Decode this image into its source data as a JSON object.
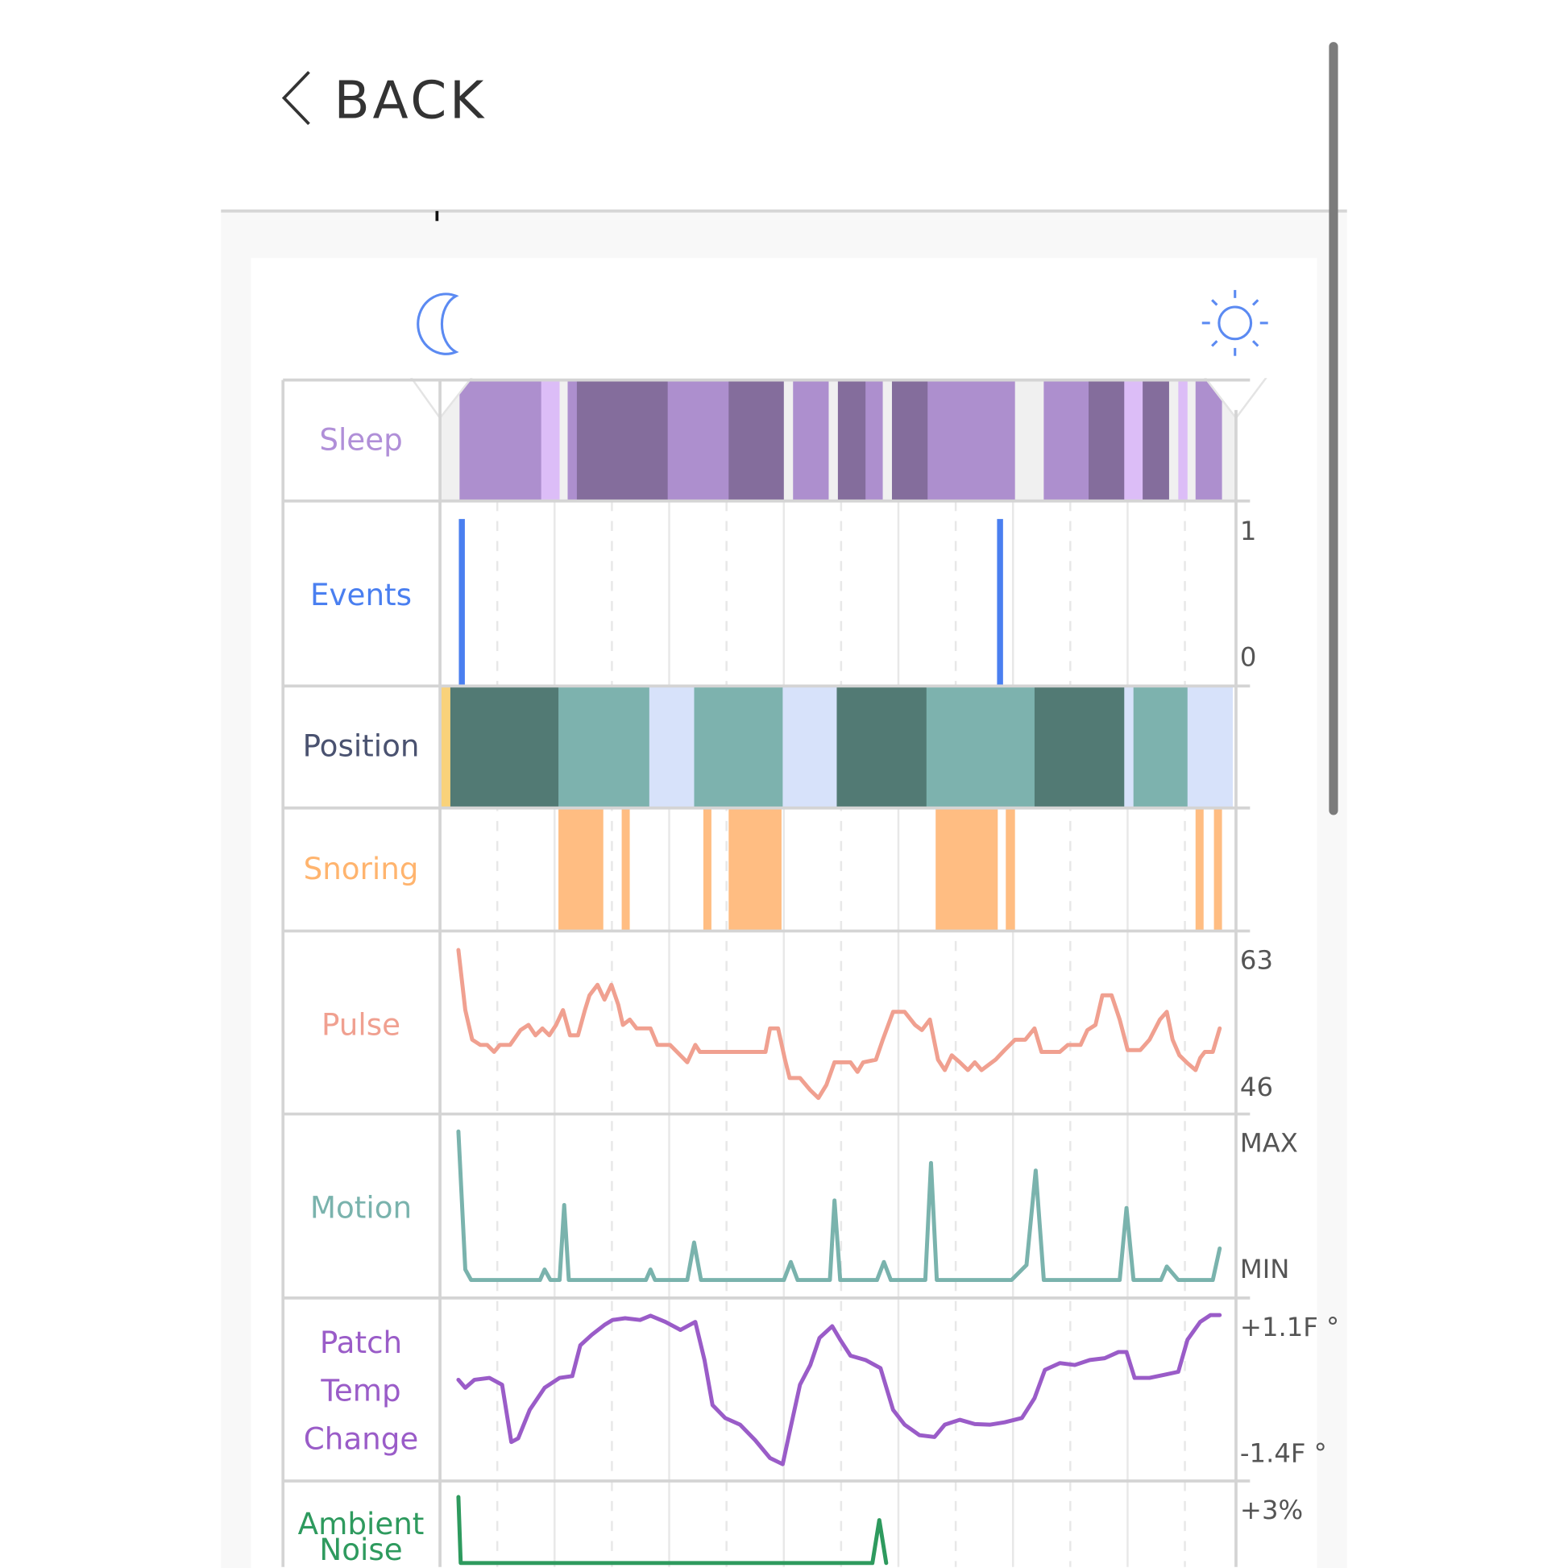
{
  "header": {
    "back_label": "BACK",
    "back_icon": "chevron-left-icon"
  },
  "icons": {
    "start": "moon-icon",
    "end": "sun-icon"
  },
  "rows": {
    "sleep": {
      "label": "Sleep",
      "color": "#b08fd8"
    },
    "events": {
      "label": "Events",
      "color": "#4a7ff0",
      "max_label": "1",
      "min_label": "0"
    },
    "position": {
      "label": "Position",
      "color": "#4a5270"
    },
    "snoring": {
      "label": "Snoring",
      "color": "#ffb46e"
    },
    "pulse": {
      "label": "Pulse",
      "color": "#f0a090",
      "max_label": "63",
      "min_label": "46"
    },
    "motion": {
      "label": "Motion",
      "color": "#7ab3ad",
      "max_label": "MAX",
      "min_label": "MIN"
    },
    "patch": {
      "label_lines": [
        "Patch",
        "Temp",
        "Change"
      ],
      "color": "#9a5cc8",
      "max_label": "+1.1F °",
      "min_label": "-1.4F °"
    },
    "ambient": {
      "label_lines": [
        "Ambient",
        "Noise"
      ],
      "color": "#2e9a5e",
      "max_label": "+3%"
    }
  },
  "chart_data": {
    "type": "timeline",
    "x_unit": "hours",
    "sleep_colors": {
      "awake": "#f0f0f0",
      "light": "#dcbdf7",
      "medium": "#ad8fce",
      "deep": "#846d9c"
    },
    "sleep": [
      [
        0,
        0.17,
        "awake"
      ],
      [
        0.17,
        0.88,
        "medium"
      ],
      [
        0.88,
        1.04,
        "light"
      ],
      [
        1.04,
        1.11,
        "awake"
      ],
      [
        1.11,
        1.19,
        "medium"
      ],
      [
        1.19,
        1.98,
        "deep"
      ],
      [
        1.98,
        2.51,
        "medium"
      ],
      [
        2.51,
        2.99,
        "deep"
      ],
      [
        2.99,
        3.07,
        "awake"
      ],
      [
        3.07,
        3.38,
        "medium"
      ],
      [
        3.38,
        3.46,
        "awake"
      ],
      [
        3.46,
        3.7,
        "deep"
      ],
      [
        3.7,
        3.85,
        "medium"
      ],
      [
        3.85,
        3.93,
        "awake"
      ],
      [
        3.93,
        4.24,
        "deep"
      ],
      [
        4.24,
        5.0,
        "medium"
      ],
      [
        5.0,
        5.25,
        "awake"
      ],
      [
        5.25,
        5.64,
        "medium"
      ],
      [
        5.64,
        5.95,
        "deep"
      ],
      [
        5.95,
        6.11,
        "light"
      ],
      [
        6.11,
        6.34,
        "deep"
      ],
      [
        6.34,
        6.42,
        "awake"
      ],
      [
        6.42,
        6.5,
        "light"
      ],
      [
        6.5,
        6.57,
        "awake"
      ],
      [
        6.57,
        6.8,
        "medium"
      ],
      [
        6.8,
        6.92,
        "awake"
      ]
    ],
    "events": [
      0.19,
      4.87
    ],
    "position_colors": {
      "yellow": "#f9d27a",
      "dark": "#527a74",
      "teal": "#7db2ae",
      "light": "#d7e2fa"
    },
    "position": [
      [
        0,
        0.09,
        "yellow"
      ],
      [
        0.09,
        1.03,
        "dark"
      ],
      [
        1.03,
        1.82,
        "teal"
      ],
      [
        1.82,
        2.21,
        "light"
      ],
      [
        2.21,
        2.98,
        "teal"
      ],
      [
        2.98,
        3.45,
        "light"
      ],
      [
        3.45,
        4.23,
        "dark"
      ],
      [
        4.23,
        5.17,
        "teal"
      ],
      [
        5.17,
        5.95,
        "dark"
      ],
      [
        5.95,
        6.03,
        "light"
      ],
      [
        6.03,
        6.5,
        "teal"
      ],
      [
        6.5,
        6.89,
        "light"
      ]
    ],
    "snoring_color": "#ffbd82",
    "snoring": [
      [
        1.03,
        1.42
      ],
      [
        1.58,
        1.65
      ],
      [
        2.29,
        2.36
      ],
      [
        2.51,
        2.97
      ],
      [
        4.31,
        4.85
      ],
      [
        4.92,
        5.0
      ],
      [
        6.57,
        6.64
      ],
      [
        6.73,
        6.8
      ]
    ],
    "pulse": {
      "ylim": [
        46,
        63
      ],
      "points": [
        [
          0.16,
          63
        ],
        [
          0.22,
          56.1
        ],
        [
          0.28,
          52.7
        ],
        [
          0.35,
          52.1
        ],
        [
          0.41,
          52.1
        ],
        [
          0.47,
          51.3
        ],
        [
          0.52,
          52.1
        ],
        [
          0.61,
          52.1
        ],
        [
          0.7,
          53.8
        ],
        [
          0.77,
          54.4
        ],
        [
          0.83,
          53.2
        ],
        [
          0.89,
          54.0
        ],
        [
          0.95,
          53.2
        ],
        [
          1.01,
          54.4
        ],
        [
          1.07,
          56.1
        ],
        [
          1.13,
          53.2
        ],
        [
          1.2,
          53.2
        ],
        [
          1.26,
          56.1
        ],
        [
          1.3,
          57.8
        ],
        [
          1.37,
          59.0
        ],
        [
          1.43,
          57.3
        ],
        [
          1.49,
          59.0
        ],
        [
          1.55,
          56.7
        ],
        [
          1.59,
          54.4
        ],
        [
          1.65,
          55.0
        ],
        [
          1.71,
          54.0
        ],
        [
          1.83,
          54.0
        ],
        [
          1.89,
          52.1
        ],
        [
          2.0,
          52.1
        ],
        [
          2.09,
          50.9
        ],
        [
          2.15,
          50.1
        ],
        [
          2.22,
          52.1
        ],
        [
          2.26,
          51.3
        ],
        [
          2.83,
          51.3
        ],
        [
          2.87,
          54.0
        ],
        [
          2.94,
          54.0
        ],
        [
          3.0,
          50.4
        ],
        [
          3.04,
          48.3
        ],
        [
          3.13,
          48.3
        ],
        [
          3.22,
          46.9
        ],
        [
          3.29,
          46.0
        ],
        [
          3.36,
          47.5
        ],
        [
          3.43,
          50.1
        ],
        [
          3.57,
          50.1
        ],
        [
          3.63,
          49.0
        ],
        [
          3.68,
          50.1
        ],
        [
          3.79,
          50.4
        ],
        [
          3.85,
          52.7
        ],
        [
          3.94,
          55.9
        ],
        [
          4.04,
          55.9
        ],
        [
          4.13,
          54.4
        ],
        [
          4.19,
          53.8
        ],
        [
          4.26,
          55.0
        ],
        [
          4.33,
          50.4
        ],
        [
          4.39,
          49.2
        ],
        [
          4.45,
          50.9
        ],
        [
          4.52,
          50.1
        ],
        [
          4.59,
          49.2
        ],
        [
          4.65,
          50.1
        ],
        [
          4.71,
          49.2
        ],
        [
          4.77,
          49.8
        ],
        [
          4.83,
          50.4
        ],
        [
          4.91,
          51.5
        ],
        [
          5.0,
          52.7
        ],
        [
          5.09,
          52.7
        ],
        [
          5.17,
          54.0
        ],
        [
          5.23,
          51.3
        ],
        [
          5.39,
          51.3
        ],
        [
          5.46,
          52.1
        ],
        [
          5.57,
          52.1
        ],
        [
          5.63,
          53.8
        ],
        [
          5.7,
          54.4
        ],
        [
          5.76,
          57.8
        ],
        [
          5.84,
          57.8
        ],
        [
          5.91,
          55.0
        ],
        [
          5.98,
          51.5
        ],
        [
          6.09,
          51.5
        ],
        [
          6.17,
          52.7
        ],
        [
          6.26,
          55.0
        ],
        [
          6.32,
          55.9
        ],
        [
          6.37,
          52.7
        ],
        [
          6.43,
          50.9
        ],
        [
          6.5,
          50.0
        ],
        [
          6.57,
          49.2
        ],
        [
          6.61,
          50.6
        ],
        [
          6.65,
          51.3
        ],
        [
          6.72,
          51.3
        ],
        [
          6.78,
          54.0
        ]
      ]
    },
    "motion": {
      "ylim": [
        0,
        1
      ],
      "points": [
        [
          0.16,
          0.99
        ],
        [
          0.22,
          0.07
        ],
        [
          0.27,
          0
        ],
        [
          0.87,
          0
        ],
        [
          0.91,
          0.07
        ],
        [
          0.96,
          0
        ],
        [
          1.04,
          0
        ],
        [
          1.08,
          0.5
        ],
        [
          1.12,
          0
        ],
        [
          1.79,
          0
        ],
        [
          1.83,
          0.07
        ],
        [
          1.87,
          0
        ],
        [
          2.15,
          0
        ],
        [
          2.21,
          0.25
        ],
        [
          2.27,
          0
        ],
        [
          2.99,
          0
        ],
        [
          3.05,
          0.12
        ],
        [
          3.11,
          0
        ],
        [
          3.39,
          0
        ],
        [
          3.43,
          0.53
        ],
        [
          3.48,
          0
        ],
        [
          3.8,
          0
        ],
        [
          3.86,
          0.12
        ],
        [
          3.92,
          0
        ],
        [
          4.22,
          0
        ],
        [
          4.27,
          0.78
        ],
        [
          4.32,
          0
        ],
        [
          4.97,
          0
        ],
        [
          5.1,
          0.1
        ],
        [
          5.18,
          0.73
        ],
        [
          5.25,
          0
        ],
        [
          5.91,
          0
        ],
        [
          5.97,
          0.48
        ],
        [
          6.03,
          0
        ],
        [
          6.27,
          0
        ],
        [
          6.32,
          0.09
        ],
        [
          6.42,
          0
        ],
        [
          6.72,
          0
        ],
        [
          6.78,
          0.21
        ]
      ]
    },
    "patch_temp": {
      "ylim": [
        -1.4,
        1.1
      ],
      "points": [
        [
          0.16,
          0.0
        ],
        [
          0.22,
          -0.13
        ],
        [
          0.3,
          0.0
        ],
        [
          0.43,
          0.03
        ],
        [
          0.54,
          -0.08
        ],
        [
          0.62,
          -1.01
        ],
        [
          0.68,
          -0.95
        ],
        [
          0.78,
          -0.49
        ],
        [
          0.91,
          -0.13
        ],
        [
          1.04,
          0.03
        ],
        [
          1.15,
          0.06
        ],
        [
          1.22,
          0.56
        ],
        [
          1.32,
          0.73
        ],
        [
          1.43,
          0.89
        ],
        [
          1.5,
          0.97
        ],
        [
          1.61,
          1.0
        ],
        [
          1.74,
          0.97
        ],
        [
          1.83,
          1.04
        ],
        [
          1.96,
          0.94
        ],
        [
          2.09,
          0.81
        ],
        [
          2.22,
          0.94
        ],
        [
          2.3,
          0.32
        ],
        [
          2.37,
          -0.41
        ],
        [
          2.48,
          -0.62
        ],
        [
          2.61,
          -0.73
        ],
        [
          2.74,
          -0.98
        ],
        [
          2.87,
          -1.27
        ],
        [
          2.98,
          -1.37
        ],
        [
          3.04,
          -0.85
        ],
        [
          3.13,
          -0.08
        ],
        [
          3.22,
          0.24
        ],
        [
          3.3,
          0.68
        ],
        [
          3.41,
          0.87
        ],
        [
          3.48,
          0.65
        ],
        [
          3.57,
          0.39
        ],
        [
          3.7,
          0.32
        ],
        [
          3.83,
          0.19
        ],
        [
          3.94,
          -0.49
        ],
        [
          4.04,
          -0.73
        ],
        [
          4.17,
          -0.9
        ],
        [
          4.3,
          -0.93
        ],
        [
          4.39,
          -0.73
        ],
        [
          4.52,
          -0.65
        ],
        [
          4.65,
          -0.72
        ],
        [
          4.78,
          -0.73
        ],
        [
          4.91,
          -0.69
        ],
        [
          5.06,
          -0.62
        ],
        [
          5.17,
          -0.3
        ],
        [
          5.26,
          0.16
        ],
        [
          5.39,
          0.27
        ],
        [
          5.52,
          0.24
        ],
        [
          5.65,
          0.32
        ],
        [
          5.78,
          0.35
        ],
        [
          5.9,
          0.45
        ],
        [
          5.97,
          0.45
        ],
        [
          6.04,
          0.03
        ],
        [
          6.17,
          0.03
        ],
        [
          6.3,
          0.08
        ],
        [
          6.42,
          0.13
        ],
        [
          6.5,
          0.65
        ],
        [
          6.61,
          0.94
        ],
        [
          6.7,
          1.05
        ],
        [
          6.78,
          1.05
        ]
      ]
    },
    "ambient_noise": {
      "points": [
        [
          0.16,
          3.0
        ],
        [
          0.18,
          -1.0
        ],
        [
          3.76,
          -1.0
        ],
        [
          3.82,
          1.6
        ],
        [
          3.88,
          -1.0
        ]
      ]
    }
  }
}
